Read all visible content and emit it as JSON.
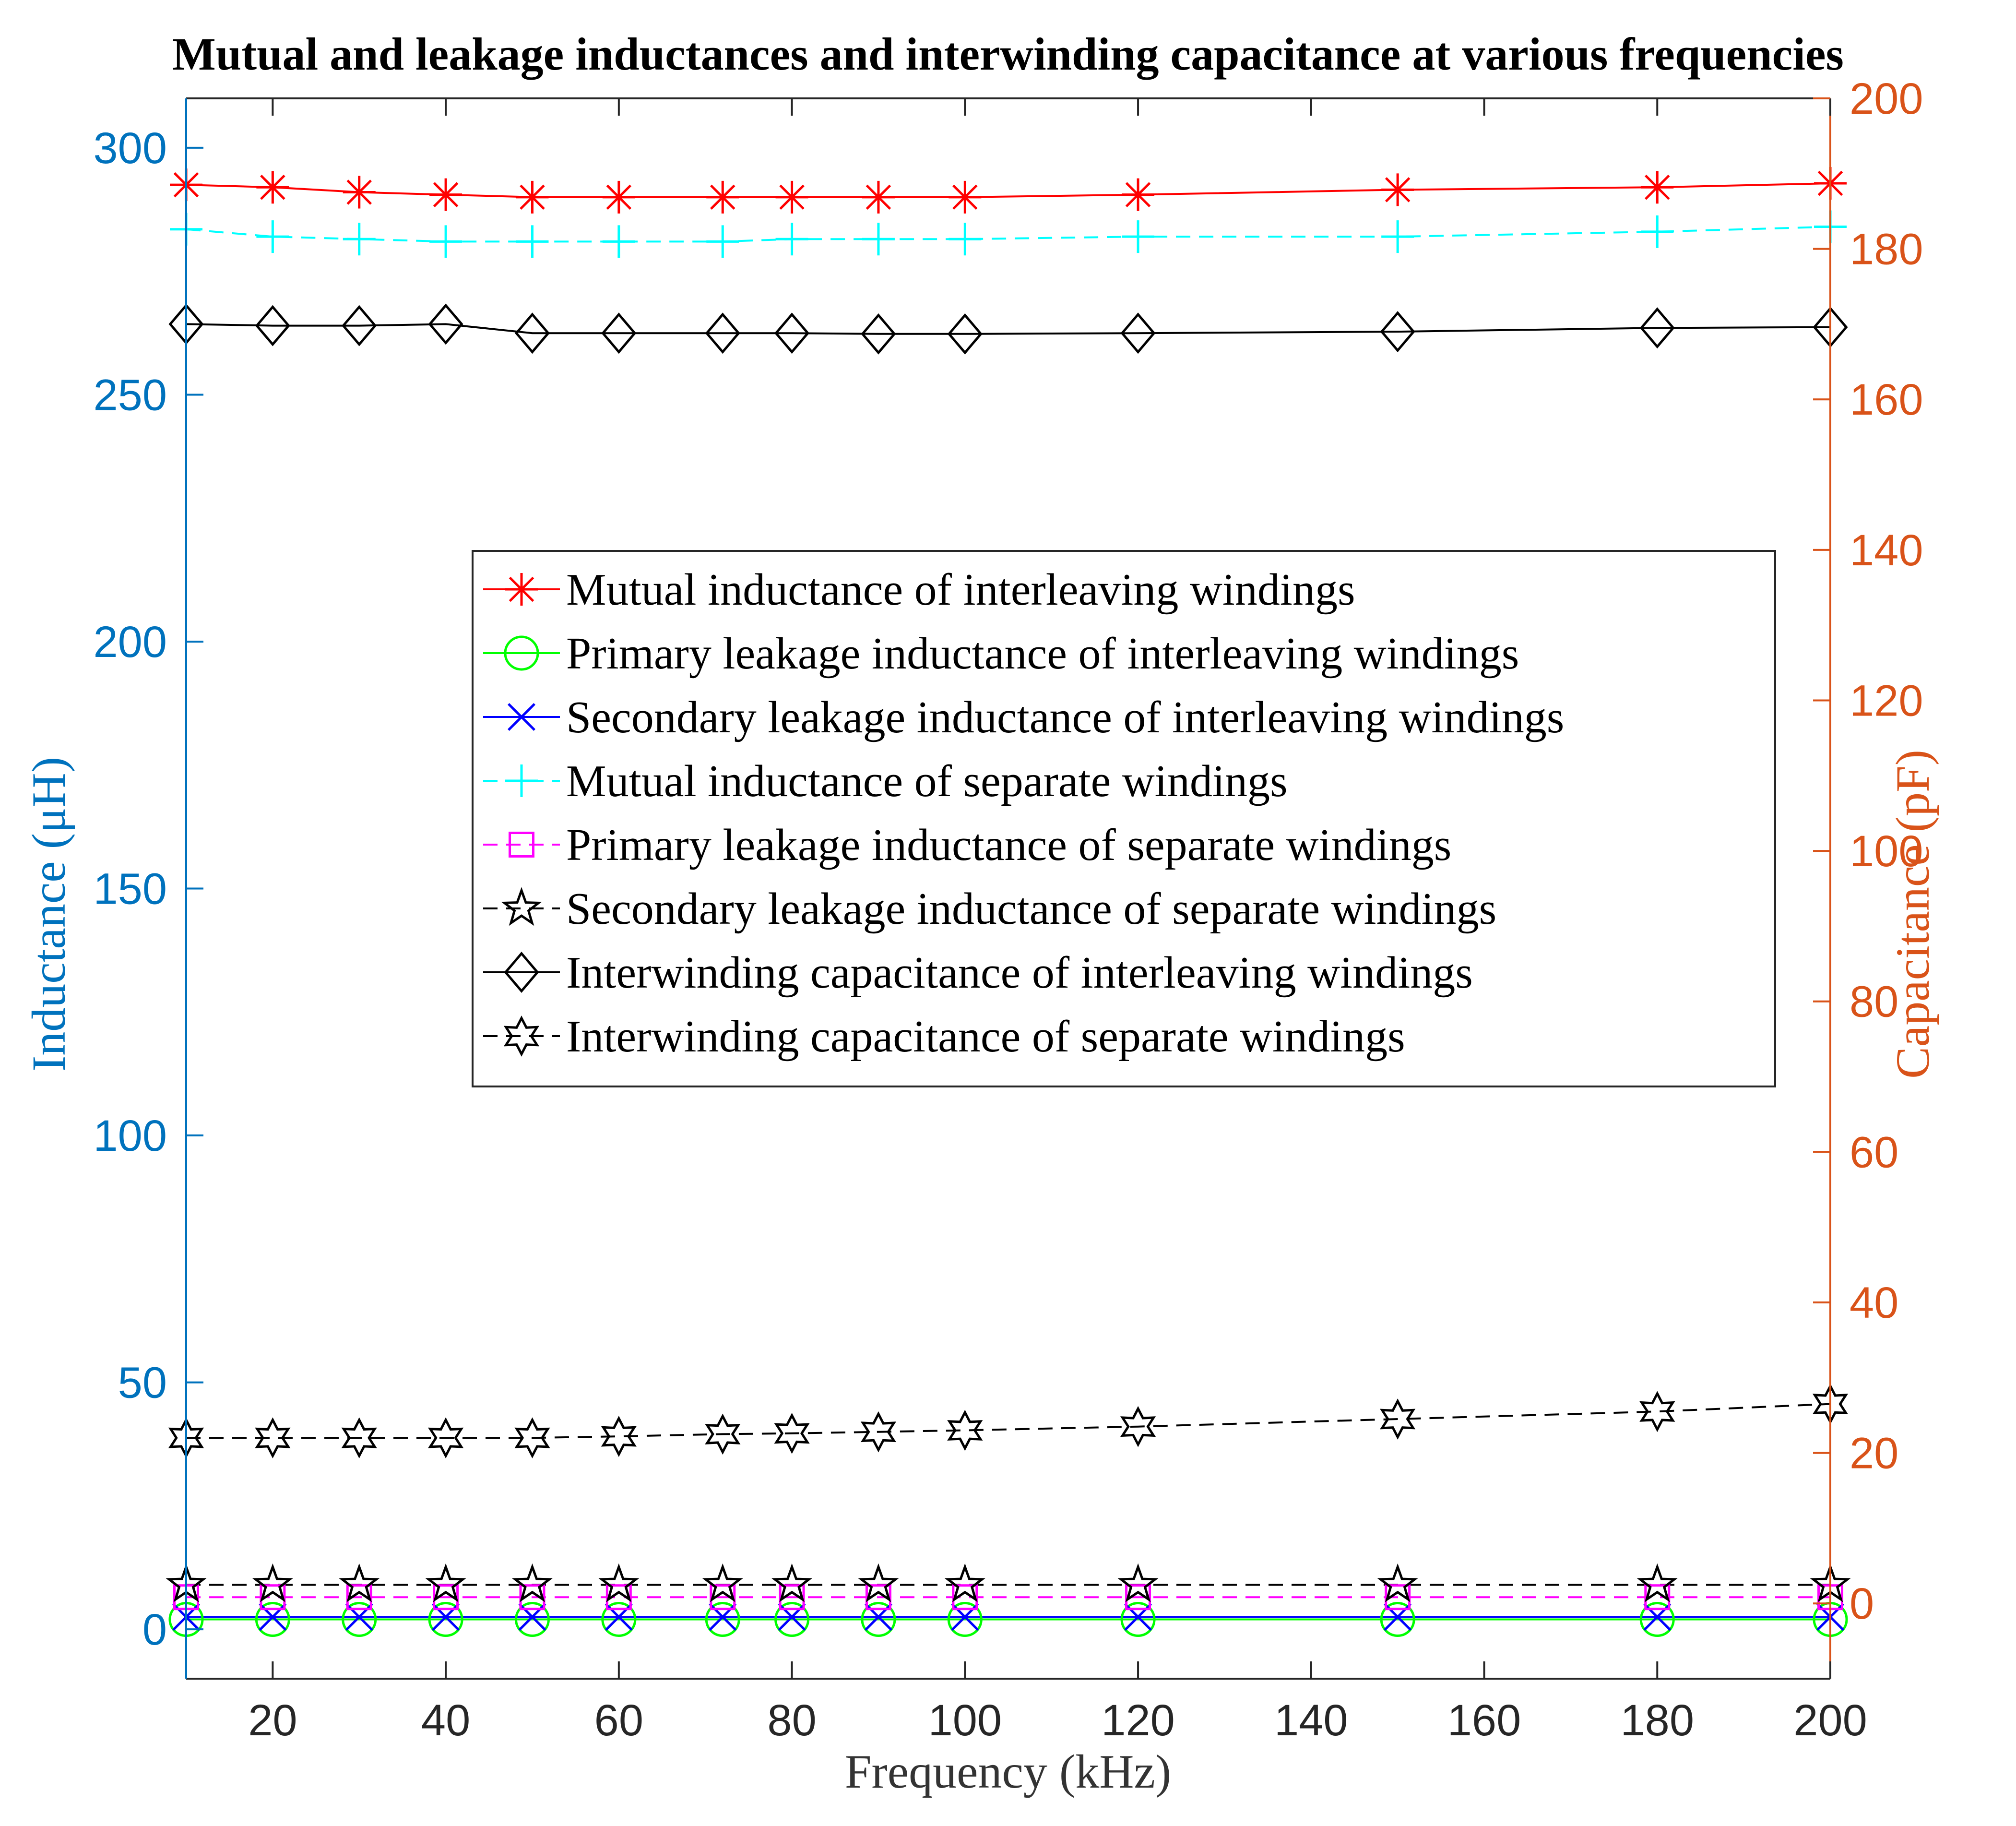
{
  "chart_data": {
    "type": "line",
    "title": "Mutual and leakage inductances and interwinding capacitance at various frequencies",
    "xlabel": "Frequency (kHz)",
    "ylabel_left": "Inductance (μH)",
    "ylabel_right": "Capacitance (pF)",
    "xlim": [
      10,
      200
    ],
    "ylim_left": [
      -10,
      310
    ],
    "ylim_right": [
      -10,
      200
    ],
    "x_ticks": [
      20,
      40,
      60,
      80,
      100,
      120,
      140,
      160,
      180,
      200
    ],
    "y_left_ticks": [
      0,
      50,
      100,
      150,
      200,
      250,
      300
    ],
    "y_right_ticks": [
      0,
      20,
      40,
      60,
      80,
      100,
      120,
      140,
      160,
      180,
      200
    ],
    "left_axis_color": "#0072BD",
    "right_axis_color": "#D95319",
    "x": [
      10,
      20,
      30,
      40,
      50,
      60,
      72,
      80,
      90,
      100,
      120,
      150,
      180,
      200
    ],
    "series": [
      {
        "name": "Mutual inductance of interleaving windings",
        "axis": "left",
        "color": "#FF0000",
        "dash": "solid",
        "marker": "asterisk",
        "values": [
          292.5,
          292.0,
          291.0,
          290.5,
          290.0,
          290.0,
          290.0,
          290.0,
          290.0,
          290.0,
          290.5,
          291.5,
          292.0,
          292.8
        ]
      },
      {
        "name": "Primary leakage inductance of interleaving windings",
        "axis": "left",
        "color": "#00FF00",
        "dash": "solid",
        "marker": "circle",
        "values": [
          2.0,
          2.0,
          2.0,
          2.0,
          2.0,
          2.0,
          2.0,
          2.0,
          2.0,
          2.0,
          2.0,
          2.0,
          2.0,
          2.0
        ]
      },
      {
        "name": "Secondary leakage inductance of interleaving windings",
        "axis": "left",
        "color": "#0000FF",
        "dash": "solid",
        "marker": "x",
        "values": [
          2.5,
          2.5,
          2.5,
          2.5,
          2.5,
          2.5,
          2.5,
          2.5,
          2.5,
          2.5,
          2.5,
          2.5,
          2.5,
          2.5
        ]
      },
      {
        "name": "Mutual inductance of separate windings",
        "axis": "left",
        "color": "#00FFFF",
        "dash": "dashed",
        "marker": "plus",
        "values": [
          283.5,
          282.0,
          281.5,
          281.0,
          281.0,
          281.0,
          281.0,
          281.5,
          281.5,
          281.5,
          282.0,
          282.0,
          283.0,
          284.0
        ]
      },
      {
        "name": "Primary leakage inductance of separate windings",
        "axis": "left",
        "color": "#FF00FF",
        "dash": "dashed",
        "marker": "square",
        "values": [
          6.5,
          6.5,
          6.5,
          6.5,
          6.5,
          6.5,
          6.5,
          6.5,
          6.5,
          6.5,
          6.5,
          6.5,
          6.5,
          6.5
        ]
      },
      {
        "name": "Secondary leakage inductance of separate windings",
        "axis": "left",
        "color": "#000000",
        "dash": "dashed",
        "marker": "pentagram",
        "values": [
          9.0,
          9.0,
          9.0,
          9.0,
          9.0,
          9.0,
          9.0,
          9.0,
          9.0,
          9.0,
          9.0,
          9.0,
          9.0,
          9.0
        ]
      },
      {
        "name": "Interwinding capacitance of interleaving windings",
        "axis": "right",
        "color": "#000000",
        "dash": "solid",
        "marker": "diamond",
        "values": [
          170.0,
          169.8,
          169.8,
          170.0,
          168.8,
          168.8,
          168.8,
          168.8,
          168.7,
          168.7,
          168.8,
          169.0,
          169.5,
          169.6
        ]
      },
      {
        "name": "Interwinding capacitance of separate windings",
        "axis": "right",
        "color": "#000000",
        "dash": "dashed",
        "marker": "hexagram",
        "values": [
          22.0,
          22.0,
          22.0,
          22.0,
          22.0,
          22.2,
          22.5,
          22.6,
          22.8,
          23.0,
          23.5,
          24.5,
          25.5,
          26.5
        ]
      }
    ],
    "legend_position": "center",
    "grid": false
  }
}
